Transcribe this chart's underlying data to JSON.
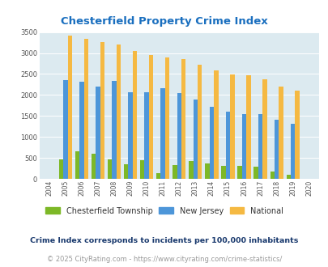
{
  "title": "Chesterfield Property Crime Index",
  "years": [
    "2004",
    "2005",
    "2006",
    "2007",
    "2008",
    "2009",
    "2010",
    "2011",
    "2012",
    "2013",
    "2014",
    "2015",
    "2016",
    "2017",
    "2018",
    "2019",
    "2020"
  ],
  "chesterfield": [
    0,
    470,
    660,
    600,
    470,
    350,
    450,
    140,
    330,
    430,
    370,
    310,
    320,
    290,
    175,
    100,
    0
  ],
  "new_jersey": [
    0,
    2360,
    2320,
    2200,
    2330,
    2060,
    2060,
    2160,
    2050,
    1900,
    1720,
    1610,
    1550,
    1550,
    1400,
    1310,
    0
  ],
  "national": [
    0,
    3420,
    3340,
    3260,
    3200,
    3040,
    2950,
    2900,
    2860,
    2730,
    2590,
    2490,
    2470,
    2370,
    2200,
    2100,
    0
  ],
  "chesterfield_color": "#7db827",
  "new_jersey_color": "#4d96d9",
  "national_color": "#f5b942",
  "background_color": "#dceaf0",
  "title_color": "#1a6fbf",
  "ylim": [
    0,
    3500
  ],
  "yticks": [
    0,
    500,
    1000,
    1500,
    2000,
    2500,
    3000,
    3500
  ],
  "legend_label_1": "Chesterfield Township",
  "legend_label_2": "New Jersey",
  "legend_label_3": "National",
  "footnote_1": "Crime Index corresponds to incidents per 100,000 inhabitants",
  "footnote_2": "© 2025 CityRating.com - https://www.cityrating.com/crime-statistics/",
  "footnote_color": "#1a3a6e",
  "footnote2_color": "#999999"
}
